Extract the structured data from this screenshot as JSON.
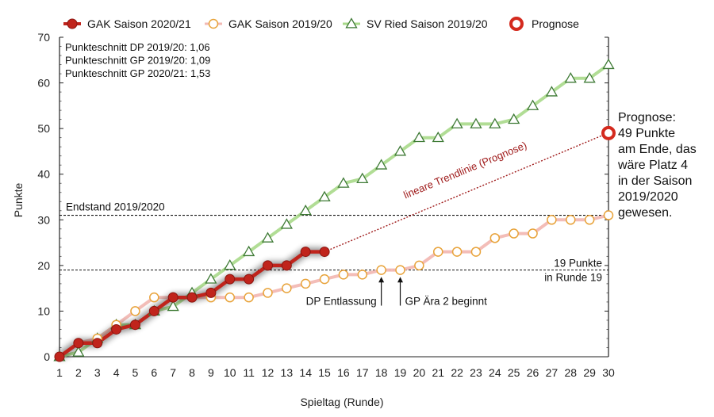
{
  "chart_data": {
    "type": "line",
    "title": "",
    "xlabel": "Spieltag (Runde)",
    "ylabel": "Punkte",
    "xlim": [
      1,
      30
    ],
    "ylim": [
      0,
      70
    ],
    "x_ticks": [
      1,
      2,
      3,
      4,
      5,
      6,
      7,
      8,
      9,
      10,
      11,
      12,
      13,
      14,
      15,
      16,
      17,
      18,
      19,
      20,
      21,
      22,
      23,
      24,
      25,
      26,
      27,
      28,
      29,
      30
    ],
    "y_ticks": [
      0,
      10,
      20,
      30,
      40,
      50,
      60,
      70
    ],
    "legend_position": "top",
    "grid": false,
    "series": [
      {
        "name": "GAK Saison 2020/21",
        "color": "#c0241c",
        "marker": "filled-circle",
        "x": [
          1,
          2,
          3,
          4,
          5,
          6,
          7,
          8,
          9,
          10,
          11,
          12,
          13,
          14,
          15
        ],
        "y": [
          0,
          3,
          3,
          6,
          7,
          10,
          13,
          13,
          14,
          17,
          17,
          20,
          20,
          23,
          23
        ]
      },
      {
        "name": "GAK Saison 2019/20",
        "color": "#e8a33a",
        "line_color": "#f2b9b4",
        "marker": "open-circle",
        "x": [
          1,
          2,
          3,
          4,
          5,
          6,
          7,
          8,
          9,
          10,
          11,
          12,
          13,
          14,
          15,
          16,
          17,
          18,
          19,
          20,
          21,
          22,
          23,
          24,
          25,
          26,
          27,
          28,
          29,
          30
        ],
        "y": [
          0,
          3,
          4,
          7,
          10,
          13,
          13,
          13,
          13,
          13,
          13,
          14,
          15,
          16,
          17,
          18,
          18,
          19,
          19,
          20,
          23,
          23,
          23,
          26,
          27,
          27,
          30,
          30,
          30,
          31
        ]
      },
      {
        "name": "SV Ried Saison 2019/20",
        "color": "#3e7a35",
        "line_color": "#a8d98a",
        "marker": "open-triangle",
        "x": [
          1,
          2,
          3,
          4,
          5,
          6,
          7,
          8,
          9,
          10,
          11,
          12,
          13,
          14,
          15,
          16,
          17,
          18,
          19,
          20,
          21,
          22,
          23,
          24,
          25,
          26,
          27,
          28,
          29,
          30
        ],
        "y": [
          0,
          1,
          4,
          7,
          7,
          10,
          11,
          14,
          17,
          20,
          23,
          26,
          29,
          32,
          35,
          38,
          39,
          42,
          45,
          48,
          48,
          51,
          51,
          51,
          52,
          55,
          58,
          61,
          61,
          64
        ]
      },
      {
        "name": "Prognose",
        "color": "#d42a1e",
        "marker": "ring",
        "x": [
          30
        ],
        "y": [
          49
        ]
      }
    ],
    "trendline": {
      "from": [
        15,
        23
      ],
      "to": [
        30,
        49
      ],
      "label": "lineare Trendlinie (Prognose)",
      "color": "#a01d1d"
    },
    "reference_lines": [
      {
        "y": 31,
        "label": "Endstand 2019/2020"
      },
      {
        "y": 19,
        "label_lines": [
          "19 Punkte",
          "in Runde 19"
        ]
      }
    ],
    "stats_lines": [
      "Punkteschnitt DP 2019/20: 1,06",
      "Punkteschnitt GP 2019/20: 1,09",
      "Punkteschnitt GP 2020/21: 1,53"
    ],
    "event_markers": [
      {
        "x": 18,
        "label": "DP Entlassung"
      },
      {
        "x": 19,
        "label": "GP Ära 2 beginnt"
      }
    ],
    "prognosis_note": [
      "Prognose:",
      "49 Punkte",
      "am Ende, das",
      "wäre Platz 4",
      "in der Saison",
      "2019/2020",
      "gewesen."
    ]
  }
}
